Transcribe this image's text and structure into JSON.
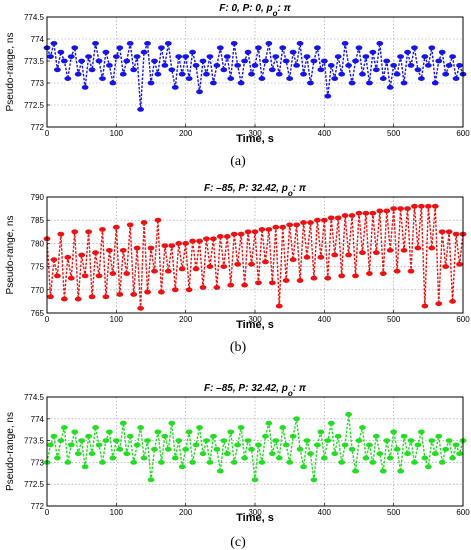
{
  "chart_data": [
    {
      "type": "line",
      "panel_label": "(a)",
      "title": "F: 0,  P: 0,  p",
      "title_sub": "o",
      "title_tail": ": π",
      "xlabel": "Time,  s",
      "ylabel": "Pseudo-range,  ns",
      "xlim": [
        0,
        600
      ],
      "ylim": [
        772,
        774.5
      ],
      "xticks": [
        "0",
        "100",
        "200",
        "300",
        "400",
        "500",
        "600"
      ],
      "yticks": [
        "772",
        "772.5",
        "773",
        "773.5",
        "774",
        "774.5"
      ],
      "grid": true,
      "color": "#1515e6",
      "series": [
        {
          "x": [
            0,
            5,
            10,
            15,
            20,
            25,
            30,
            35,
            40,
            45,
            50,
            55,
            60,
            65,
            70,
            75,
            80,
            85,
            90,
            95,
            100,
            105,
            110,
            115,
            120,
            125,
            130,
            135,
            140,
            145,
            150,
            155,
            160,
            165,
            170,
            175,
            180,
            185,
            190,
            195,
            200,
            205,
            210,
            215,
            220,
            225,
            230,
            235,
            240,
            245,
            250,
            255,
            260,
            265,
            270,
            275,
            280,
            285,
            290,
            295,
            300,
            305,
            310,
            315,
            320,
            325,
            330,
            335,
            340,
            345,
            350,
            355,
            360,
            365,
            370,
            375,
            380,
            385,
            390,
            395,
            400,
            405,
            410,
            415,
            420,
            425,
            430,
            435,
            440,
            445,
            450,
            455,
            460,
            465,
            470,
            475,
            480,
            485,
            490,
            495,
            500,
            505,
            510,
            515,
            520,
            525,
            530,
            535,
            540,
            545,
            550,
            555,
            560,
            565,
            570,
            575,
            580,
            585,
            590,
            595,
            600
          ],
          "y": [
            773.8,
            773.6,
            773.9,
            773.3,
            773.7,
            773.5,
            773.1,
            773.6,
            773.8,
            773.2,
            773.5,
            772.9,
            773.6,
            773.3,
            773.9,
            773.5,
            773.1,
            773.7,
            773.4,
            773.0,
            773.6,
            773.8,
            773.2,
            773.5,
            773.9,
            773.3,
            773.6,
            772.4,
            773.7,
            773.9,
            773.0,
            773.5,
            773.2,
            773.8,
            773.4,
            773.9,
            773.3,
            772.9,
            773.6,
            773.2,
            773.6,
            773.1,
            773.7,
            773.4,
            772.8,
            773.5,
            773.2,
            773.6,
            773.0,
            773.4,
            773.8,
            773.3,
            773.6,
            773.1,
            773.9,
            773.4,
            773.0,
            773.5,
            773.7,
            773.2,
            773.4,
            773.8,
            773.1,
            773.5,
            773.9,
            773.3,
            773.6,
            773.2,
            773.8,
            773.5,
            773.1,
            773.7,
            773.4,
            773.9,
            773.2,
            773.6,
            773.0,
            773.5,
            773.8,
            773.3,
            773.5,
            772.7,
            773.4,
            773.1,
            773.6,
            773.2,
            773.9,
            773.4,
            773.0,
            773.5,
            773.8,
            773.2,
            773.6,
            773.0,
            773.7,
            773.3,
            773.9,
            773.1,
            773.5,
            772.9,
            773.4,
            773.2,
            773.6,
            773.0,
            773.7,
            773.4,
            773.8,
            773.3,
            773.1,
            773.6,
            773.4,
            773.8,
            773.0,
            773.5,
            773.7,
            773.2,
            773.4,
            773.6,
            773.1,
            773.4,
            773.2
          ]
        }
      ]
    },
    {
      "type": "line",
      "panel_label": "(b)",
      "title": "F: –85,  P: 32.42,  p",
      "title_sub": "o",
      "title_tail": ": π",
      "xlabel": "Time,  s",
      "ylabel": "Pseudo-range,  ns",
      "xlim": [
        0,
        600
      ],
      "ylim": [
        765,
        790
      ],
      "xticks": [
        "0",
        "100",
        "200",
        "300",
        "400",
        "500",
        "600"
      ],
      "yticks": [
        "765",
        "770",
        "775",
        "780",
        "785",
        "790"
      ],
      "grid": true,
      "color": "#ee1111",
      "series": [
        {
          "x": [
            0,
            5,
            10,
            15,
            20,
            25,
            30,
            35,
            40,
            45,
            50,
            55,
            60,
            65,
            70,
            75,
            80,
            85,
            90,
            95,
            100,
            105,
            110,
            115,
            120,
            125,
            130,
            135,
            140,
            145,
            150,
            155,
            160,
            165,
            170,
            175,
            180,
            185,
            190,
            195,
            200,
            205,
            210,
            215,
            220,
            225,
            230,
            235,
            240,
            245,
            250,
            255,
            260,
            265,
            270,
            275,
            280,
            285,
            290,
            295,
            300,
            305,
            310,
            315,
            320,
            325,
            330,
            335,
            340,
            345,
            350,
            355,
            360,
            365,
            370,
            375,
            380,
            385,
            390,
            395,
            400,
            405,
            410,
            415,
            420,
            425,
            430,
            435,
            440,
            445,
            450,
            455,
            460,
            465,
            470,
            475,
            480,
            485,
            490,
            495,
            500,
            505,
            510,
            515,
            520,
            525,
            530,
            535,
            540,
            545,
            550,
            555,
            560,
            565,
            570,
            575,
            580,
            585,
            590,
            595,
            600
          ],
          "y": [
            781.0,
            768.5,
            776.5,
            773.0,
            782.0,
            768.0,
            777.0,
            772.5,
            782.5,
            768.0,
            777.5,
            773.0,
            782.5,
            768.5,
            778.0,
            773.0,
            783.0,
            768.5,
            778.5,
            773.5,
            783.5,
            769.0,
            778.5,
            773.5,
            784.0,
            769.0,
            779.0,
            766.0,
            784.5,
            769.5,
            779.0,
            774.0,
            785.0,
            769.5,
            779.5,
            774.0,
            779.5,
            770.0,
            780.0,
            774.5,
            780.0,
            770.0,
            780.5,
            774.5,
            780.5,
            770.5,
            781.0,
            775.0,
            781.0,
            770.5,
            781.5,
            775.0,
            781.5,
            771.0,
            782.0,
            775.5,
            782.0,
            771.0,
            782.5,
            775.5,
            782.5,
            771.5,
            783.0,
            776.0,
            783.0,
            771.5,
            783.5,
            766.5,
            783.5,
            772.0,
            784.0,
            776.5,
            784.0,
            772.0,
            784.5,
            777.0,
            784.5,
            772.5,
            785.0,
            777.0,
            785.0,
            772.5,
            785.5,
            777.5,
            785.5,
            773.0,
            786.0,
            777.5,
            786.0,
            773.0,
            786.5,
            778.0,
            786.5,
            773.5,
            786.5,
            778.0,
            787.0,
            773.5,
            787.0,
            778.5,
            787.5,
            774.0,
            787.5,
            778.5,
            787.5,
            774.0,
            788.0,
            779.0,
            788.0,
            766.5,
            788.0,
            779.0,
            788.0,
            767.0,
            782.5,
            775.0,
            782.5,
            767.5,
            782.0,
            775.5,
            782.0
          ]
        }
      ]
    },
    {
      "type": "line",
      "panel_label": "(c)",
      "title": "F: –85,  P: 32.42,  p",
      "title_sub": "o",
      "title_tail": ": π",
      "xlabel": "Time,  s",
      "ylabel": "Pseudo-range,  ns",
      "xlim": [
        0,
        600
      ],
      "ylim": [
        772,
        774.5
      ],
      "xticks": [
        "0",
        "100",
        "200",
        "300",
        "400",
        "500",
        "600"
      ],
      "yticks": [
        "772",
        "772.5",
        "773",
        "773.5",
        "774",
        "774.5"
      ],
      "grid": true,
      "color": "#22dd22",
      "series": [
        {
          "x": [
            0,
            5,
            10,
            15,
            20,
            25,
            30,
            35,
            40,
            45,
            50,
            55,
            60,
            65,
            70,
            75,
            80,
            85,
            90,
            95,
            100,
            105,
            110,
            115,
            120,
            125,
            130,
            135,
            140,
            145,
            150,
            155,
            160,
            165,
            170,
            175,
            180,
            185,
            190,
            195,
            200,
            205,
            210,
            215,
            220,
            225,
            230,
            235,
            240,
            245,
            250,
            255,
            260,
            265,
            270,
            275,
            280,
            285,
            290,
            295,
            300,
            305,
            310,
            315,
            320,
            325,
            330,
            335,
            340,
            345,
            350,
            355,
            360,
            365,
            370,
            375,
            380,
            385,
            390,
            395,
            400,
            405,
            410,
            415,
            420,
            425,
            430,
            435,
            440,
            445,
            450,
            455,
            460,
            465,
            470,
            475,
            480,
            485,
            490,
            495,
            500,
            505,
            510,
            515,
            520,
            525,
            530,
            535,
            540,
            545,
            550,
            555,
            560,
            565,
            570,
            575,
            580,
            585,
            590,
            595,
            600
          ],
          "y": [
            773.0,
            773.4,
            773.6,
            773.1,
            773.5,
            773.8,
            773.0,
            773.4,
            773.7,
            773.2,
            773.5,
            772.9,
            773.6,
            773.2,
            773.8,
            773.4,
            773.0,
            773.5,
            773.7,
            773.1,
            773.5,
            773.3,
            773.9,
            773.2,
            773.6,
            773.0,
            773.4,
            773.8,
            773.1,
            773.5,
            772.6,
            773.3,
            773.7,
            773.0,
            773.6,
            773.3,
            773.9,
            773.1,
            773.5,
            772.9,
            773.3,
            773.7,
            773.0,
            773.4,
            773.8,
            773.2,
            773.5,
            773.0,
            773.6,
            773.3,
            772.8,
            773.5,
            773.2,
            773.7,
            773.0,
            773.4,
            773.8,
            773.1,
            773.5,
            773.3,
            772.6,
            773.4,
            773.0,
            773.6,
            773.9,
            773.2,
            773.5,
            773.1,
            773.8,
            773.4,
            773.0,
            773.6,
            774.0,
            773.3,
            772.9,
            773.5,
            773.2,
            772.6,
            773.4,
            773.7,
            773.1,
            773.5,
            773.9,
            773.2,
            773.6,
            773.0,
            773.4,
            774.1,
            773.3,
            772.8,
            773.5,
            773.8,
            773.1,
            773.4,
            773.0,
            773.6,
            773.2,
            772.8,
            773.5,
            773.1,
            773.7,
            773.3,
            772.8,
            773.6,
            773.2,
            773.5,
            773.0,
            773.4,
            773.7,
            773.1,
            772.9,
            773.5,
            773.2,
            773.6,
            773.0,
            773.3,
            773.5,
            773.1,
            773.4,
            773.2,
            773.5
          ]
        }
      ]
    }
  ]
}
